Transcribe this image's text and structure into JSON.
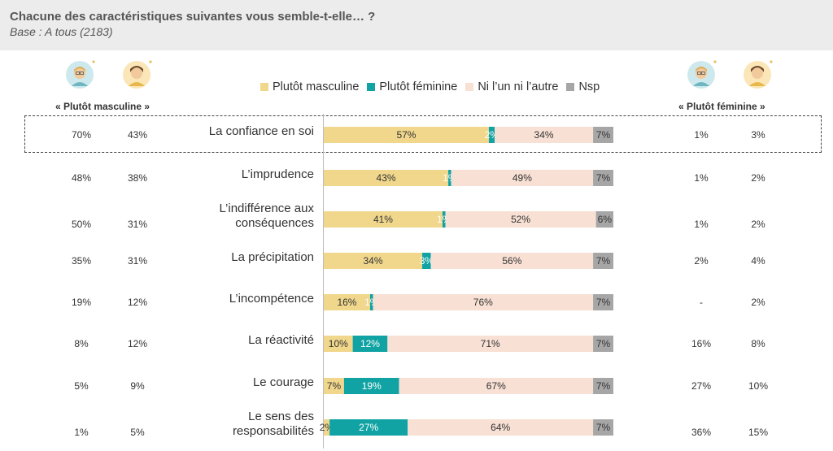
{
  "header": {
    "title": "Chacune des caractéristiques suivantes vous semble-t-elle… ?",
    "subtitle": "Base : A tous (2183)"
  },
  "left_group_label": "« Plutôt masculine »",
  "right_group_label": "« Plutôt féminine »",
  "colors": {
    "masculine": "#f0d78c",
    "feminine": "#11a3a3",
    "neither": "#f8e0d4",
    "nsp": "#a6a6a6",
    "avatar_male_bg": "#cde9ee",
    "avatar_female_bg": "#fbe6b8"
  },
  "chart_data": {
    "type": "bar",
    "orientation": "horizontal",
    "stacked": true,
    "title": "Chacune des caractéristiques suivantes vous semble-t-elle… ?",
    "categories": [
      "La confiance en soi",
      "L’imprudence",
      "L’indifférence aux conséquences",
      "La précipitation",
      "L’incompétence",
      "La réactivité",
      "Le courage",
      "Le sens des responsabilités"
    ],
    "category_lines": [
      [
        "La confiance en soi"
      ],
      [
        "L’imprudence"
      ],
      [
        "L’indifférence aux",
        "conséquences"
      ],
      [
        "La précipitation"
      ],
      [
        "L’incompétence"
      ],
      [
        "La réactivité"
      ],
      [
        "Le courage"
      ],
      [
        "Le sens des",
        "responsabilités"
      ]
    ],
    "series": [
      {
        "name": "Plutôt masculine",
        "values": [
          57,
          43,
          41,
          34,
          16,
          10,
          7,
          2
        ],
        "labels": [
          "57%",
          "43%",
          "41%",
          "34%",
          "16%",
          "10%",
          "7%",
          "2%"
        ]
      },
      {
        "name": "Plutôt féminine",
        "values": [
          2,
          1,
          1,
          3,
          1,
          12,
          19,
          27
        ],
        "labels": [
          "2%",
          "1%",
          "1%",
          "3%",
          "1%",
          "12%",
          "19%",
          "27%"
        ]
      },
      {
        "name": "Ni l’un ni l’autre",
        "values": [
          34,
          49,
          52,
          56,
          76,
          71,
          67,
          64
        ],
        "labels": [
          "34%",
          "49%",
          "52%",
          "56%",
          "76%",
          "71%",
          "67%",
          "64%"
        ]
      },
      {
        "name": "Nsp",
        "values": [
          7,
          7,
          6,
          7,
          7,
          7,
          7,
          7
        ],
        "labels": [
          "7%",
          "7%",
          "6%",
          "7%",
          "7%",
          "7%",
          "7%",
          "7%"
        ]
      }
    ],
    "xlim": [
      0,
      100
    ],
    "legend": "top-center",
    "grid": false,
    "highlighted_category": "La confiance en soi",
    "left_columns": {
      "label": "« Plutôt masculine »",
      "male": [
        "70%",
        "48%",
        "50%",
        "35%",
        "19%",
        "8%",
        "5%",
        "1%"
      ],
      "female": [
        "43%",
        "38%",
        "31%",
        "31%",
        "12%",
        "12%",
        "9%",
        "5%"
      ]
    },
    "right_columns": {
      "label": "« Plutôt féminine »",
      "male": [
        "1%",
        "1%",
        "1%",
        "2%",
        "-",
        "16%",
        "27%",
        "36%"
      ],
      "female": [
        "3%",
        "2%",
        "2%",
        "4%",
        "2%",
        "8%",
        "10%",
        "15%"
      ]
    }
  }
}
